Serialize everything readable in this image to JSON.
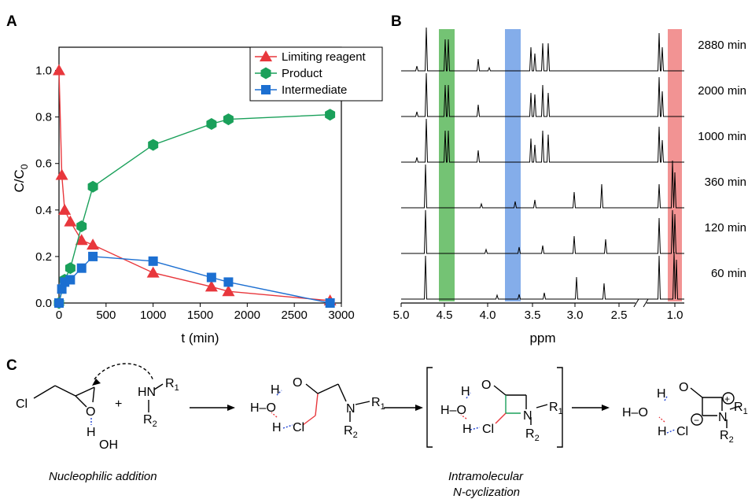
{
  "panels": {
    "a": "A",
    "b": "B",
    "c": "C"
  },
  "chart_data": [
    {
      "type": "scatter",
      "xlabel": "t (min)",
      "ylabel_main": "C/C",
      "ylabel_sub": "0",
      "xlim": [
        0,
        3000
      ],
      "ylim": [
        0,
        1.1
      ],
      "xticks": [
        "0",
        "500",
        "1000",
        "1500",
        "2000",
        "2500",
        "3000"
      ],
      "yticks": [
        "0.0",
        "0.2",
        "0.4",
        "0.6",
        "0.8",
        "1.0"
      ],
      "legend_position": "top-right",
      "series": [
        {
          "name": "Limiting reagent",
          "color": "#e8373c",
          "marker": "triangle",
          "x": [
            0,
            30,
            60,
            120,
            240,
            360,
            1000,
            1620,
            1800,
            2880
          ],
          "y": [
            1.0,
            0.55,
            0.4,
            0.35,
            0.27,
            0.25,
            0.13,
            0.07,
            0.05,
            0.01
          ]
        },
        {
          "name": "Product",
          "color": "#1aa05a",
          "marker": "hexagon",
          "x": [
            0,
            60,
            120,
            240,
            360,
            1000,
            1620,
            1800,
            2880
          ],
          "y": [
            0.0,
            0.1,
            0.15,
            0.33,
            0.5,
            0.68,
            0.77,
            0.79,
            0.81
          ]
        },
        {
          "name": "Intermediate",
          "color": "#1c6fd1",
          "marker": "square",
          "x": [
            0,
            30,
            60,
            120,
            240,
            360,
            1000,
            1620,
            1800,
            2880
          ],
          "y": [
            0.0,
            0.06,
            0.09,
            0.1,
            0.15,
            0.2,
            0.18,
            0.11,
            0.09,
            0.0
          ]
        }
      ]
    },
    {
      "type": "line",
      "xlabel": "ppm",
      "xticks": [
        "5.0",
        "4.5",
        "4.0",
        "3.5",
        "3.0",
        "2.5",
        "1.0"
      ],
      "traces": [
        "2880 min",
        "2000 min",
        "1000 min",
        "360 min",
        "120 min",
        "60 min"
      ],
      "highlight_colors": [
        "#5cb85c",
        "#6f9fe6",
        "#f08080"
      ]
    }
  ],
  "scheme": {
    "reactant1": {
      "cl": "Cl",
      "o": "O",
      "h": "H",
      "oh": "OH"
    },
    "plus": "+",
    "reactant2": {
      "hn": "HN",
      "r1": "R",
      "r1sub": "1",
      "r2": "R",
      "r2sub": "2"
    },
    "intermediate1": {
      "o_top": "O",
      "h_top": "H",
      "ho": "H–O",
      "h_low": "H",
      "cl": "Cl",
      "n": "N",
      "r1": "R",
      "r1sub": "1",
      "r2": "R",
      "r2sub": "2"
    },
    "intermediate2": {
      "o_top": "O",
      "h_top": "H",
      "ho": "H–O",
      "h_low": "H",
      "cl": "Cl",
      "n": "N",
      "r1": "R",
      "r1sub": "1",
      "r2": "R",
      "r2sub": "2"
    },
    "product": {
      "o_top": "O",
      "h_top": "H",
      "ho": "H–O",
      "h_low": "H",
      "cl": "Cl",
      "n": "N",
      "r1": "R",
      "r1sub": "1",
      "r2": "R",
      "r2sub": "2",
      "plus": "+",
      "minus": "−"
    },
    "label1": "Nucleophilic addition",
    "label2a": "Intramolecular",
    "label2b": "N-cyclization"
  }
}
